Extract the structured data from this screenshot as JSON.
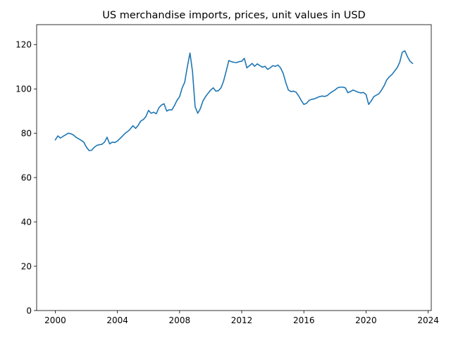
{
  "chart_data": {
    "type": "line",
    "title": "US merchandise imports, prices, unit values in USD",
    "xlabel": "",
    "ylabel": "",
    "xlim": [
      1998.8,
      2024.2
    ],
    "ylim": [
      0,
      129
    ],
    "x_ticks": [
      "2000",
      "2004",
      "2008",
      "2012",
      "2016",
      "2020",
      "2024"
    ],
    "y_ticks": [
      "0",
      "20",
      "40",
      "60",
      "80",
      "100",
      "120"
    ],
    "grid": false,
    "legend": "none",
    "series": [
      {
        "color": "#1f77b4",
        "points": [
          [
            2000.0,
            77.0
          ],
          [
            2000.17,
            78.8
          ],
          [
            2000.33,
            77.8
          ],
          [
            2000.5,
            78.6
          ],
          [
            2000.67,
            79.3
          ],
          [
            2000.83,
            80.0
          ],
          [
            2001.0,
            79.8
          ],
          [
            2001.17,
            79.2
          ],
          [
            2001.33,
            78.2
          ],
          [
            2001.5,
            77.5
          ],
          [
            2001.67,
            76.8
          ],
          [
            2001.83,
            76.0
          ],
          [
            2002.0,
            73.8
          ],
          [
            2002.17,
            72.2
          ],
          [
            2002.33,
            72.3
          ],
          [
            2002.5,
            73.6
          ],
          [
            2002.67,
            74.5
          ],
          [
            2002.83,
            74.8
          ],
          [
            2003.0,
            75.0
          ],
          [
            2003.17,
            76.0
          ],
          [
            2003.33,
            78.2
          ],
          [
            2003.5,
            75.2
          ],
          [
            2003.67,
            76.0
          ],
          [
            2003.83,
            75.8
          ],
          [
            2004.0,
            76.5
          ],
          [
            2004.25,
            78.2
          ],
          [
            2004.5,
            80.0
          ],
          [
            2004.75,
            81.3
          ],
          [
            2005.0,
            83.4
          ],
          [
            2005.17,
            82.2
          ],
          [
            2005.33,
            83.5
          ],
          [
            2005.5,
            85.5
          ],
          [
            2005.67,
            86.2
          ],
          [
            2005.83,
            87.5
          ],
          [
            2006.0,
            90.3
          ],
          [
            2006.17,
            89.0
          ],
          [
            2006.33,
            89.5
          ],
          [
            2006.5,
            88.8
          ],
          [
            2006.67,
            91.5
          ],
          [
            2006.83,
            92.7
          ],
          [
            2007.0,
            93.3
          ],
          [
            2007.17,
            90.0
          ],
          [
            2007.33,
            90.6
          ],
          [
            2007.5,
            90.5
          ],
          [
            2007.67,
            92.5
          ],
          [
            2007.83,
            94.8
          ],
          [
            2008.0,
            96.5
          ],
          [
            2008.17,
            100.5
          ],
          [
            2008.33,
            103.0
          ],
          [
            2008.5,
            110.0
          ],
          [
            2008.67,
            116.2
          ],
          [
            2008.83,
            108.0
          ],
          [
            2009.0,
            92.0
          ],
          [
            2009.17,
            89.0
          ],
          [
            2009.33,
            91.0
          ],
          [
            2009.5,
            94.5
          ],
          [
            2009.67,
            96.5
          ],
          [
            2009.83,
            98.0
          ],
          [
            2010.0,
            99.5
          ],
          [
            2010.17,
            100.5
          ],
          [
            2010.33,
            99.0
          ],
          [
            2010.5,
            99.2
          ],
          [
            2010.67,
            100.5
          ],
          [
            2010.83,
            103.5
          ],
          [
            2011.0,
            108.0
          ],
          [
            2011.17,
            112.8
          ],
          [
            2011.33,
            112.3
          ],
          [
            2011.5,
            112.0
          ],
          [
            2011.67,
            111.9
          ],
          [
            2011.83,
            112.3
          ],
          [
            2012.0,
            112.5
          ],
          [
            2012.17,
            113.8
          ],
          [
            2012.33,
            109.5
          ],
          [
            2012.5,
            110.5
          ],
          [
            2012.67,
            111.5
          ],
          [
            2012.83,
            110.2
          ],
          [
            2013.0,
            111.3
          ],
          [
            2013.17,
            110.5
          ],
          [
            2013.33,
            109.8
          ],
          [
            2013.5,
            110.2
          ],
          [
            2013.67,
            108.8
          ],
          [
            2013.83,
            109.5
          ],
          [
            2014.0,
            110.5
          ],
          [
            2014.17,
            110.2
          ],
          [
            2014.33,
            110.8
          ],
          [
            2014.5,
            109.5
          ],
          [
            2014.67,
            107.0
          ],
          [
            2014.83,
            103.0
          ],
          [
            2015.0,
            99.5
          ],
          [
            2015.17,
            98.8
          ],
          [
            2015.33,
            99.0
          ],
          [
            2015.5,
            98.5
          ],
          [
            2015.67,
            96.8
          ],
          [
            2015.83,
            94.8
          ],
          [
            2016.0,
            93.0
          ],
          [
            2016.17,
            93.5
          ],
          [
            2016.33,
            94.8
          ],
          [
            2016.5,
            95.3
          ],
          [
            2016.67,
            95.5
          ],
          [
            2016.83,
            96.0
          ],
          [
            2017.0,
            96.5
          ],
          [
            2017.17,
            96.8
          ],
          [
            2017.33,
            96.6
          ],
          [
            2017.5,
            97.0
          ],
          [
            2017.67,
            98.0
          ],
          [
            2017.83,
            98.8
          ],
          [
            2018.0,
            99.5
          ],
          [
            2018.17,
            100.5
          ],
          [
            2018.33,
            100.8
          ],
          [
            2018.5,
            100.8
          ],
          [
            2018.67,
            100.5
          ],
          [
            2018.83,
            98.3
          ],
          [
            2019.0,
            98.8
          ],
          [
            2019.17,
            99.5
          ],
          [
            2019.33,
            99.0
          ],
          [
            2019.5,
            98.5
          ],
          [
            2019.67,
            98.2
          ],
          [
            2019.83,
            98.4
          ],
          [
            2020.0,
            97.5
          ],
          [
            2020.17,
            93.0
          ],
          [
            2020.33,
            94.5
          ],
          [
            2020.5,
            96.5
          ],
          [
            2020.67,
            97.2
          ],
          [
            2020.83,
            97.8
          ],
          [
            2021.0,
            99.5
          ],
          [
            2021.17,
            101.5
          ],
          [
            2021.33,
            104.0
          ],
          [
            2021.5,
            105.5
          ],
          [
            2021.67,
            106.5
          ],
          [
            2021.83,
            108.0
          ],
          [
            2022.0,
            109.5
          ],
          [
            2022.17,
            112.0
          ],
          [
            2022.33,
            116.5
          ],
          [
            2022.5,
            117.2
          ],
          [
            2022.67,
            114.5
          ],
          [
            2022.83,
            112.5
          ],
          [
            2023.0,
            111.5
          ]
        ]
      }
    ]
  }
}
